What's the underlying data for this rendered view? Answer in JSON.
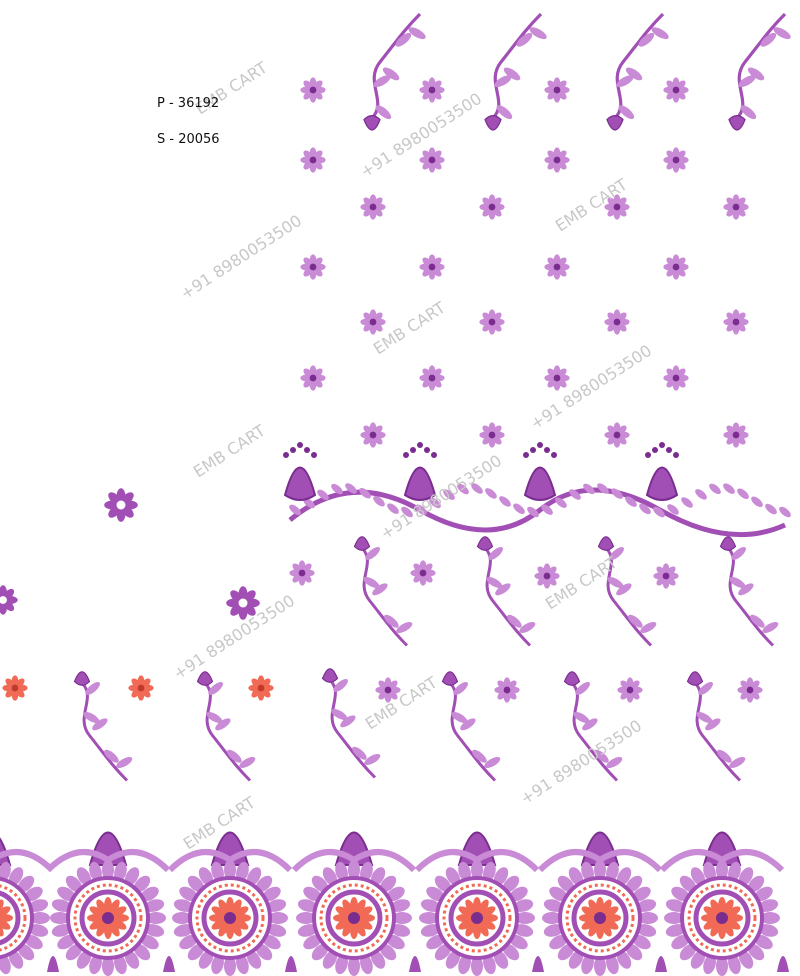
{
  "design": {
    "codes": {
      "p": "P - 36192",
      "s": "S - 20056"
    },
    "watermark": {
      "brand": "EMB CART",
      "phone": "+91 8980053500"
    }
  }
}
